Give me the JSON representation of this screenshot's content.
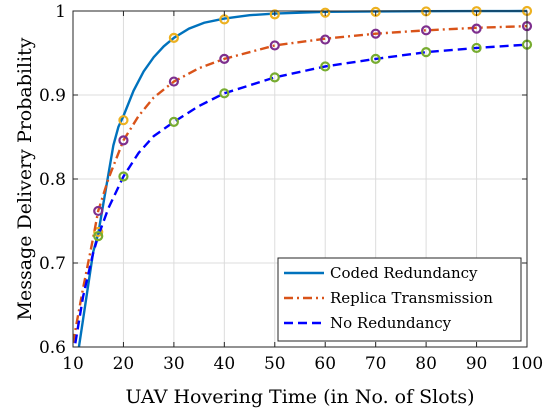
{
  "chart_data": {
    "type": "line",
    "xlabel": "UAV Hovering Time (in No. of Slots)",
    "ylabel": "Message Delivery Probability",
    "xlim": [
      10,
      100
    ],
    "ylim": [
      0.6,
      1
    ],
    "xticks": [
      10,
      20,
      30,
      40,
      50,
      60,
      70,
      80,
      90,
      100
    ],
    "yticks": [
      0.6,
      0.7,
      0.8,
      0.9,
      1
    ],
    "ytick_labels": [
      "0.6",
      "0.7",
      "0.8",
      "0.9",
      "1"
    ],
    "grid": true,
    "legend_position": "bottom-right",
    "series": [
      {
        "name": "Coded Redundancy",
        "color": "#0072BD",
        "dash": "solid",
        "marker_color": "#EDB120",
        "curve_x": [
          10,
          11,
          12,
          13,
          14,
          15,
          16,
          17,
          18,
          19,
          20,
          22,
          24,
          26,
          28,
          30,
          33,
          36,
          40,
          45,
          50,
          55,
          60,
          70,
          80,
          90,
          100
        ],
        "curve_y": [
          0.562,
          0.593,
          0.633,
          0.673,
          0.713,
          0.735,
          0.77,
          0.805,
          0.84,
          0.862,
          0.875,
          0.905,
          0.928,
          0.945,
          0.958,
          0.968,
          0.979,
          0.986,
          0.991,
          0.995,
          0.997,
          0.998,
          0.999,
          0.9995,
          0.9998,
          0.9999,
          1.0
        ],
        "marker_x": [
          15,
          20,
          30,
          40,
          50,
          60,
          70,
          80,
          90,
          100
        ],
        "marker_y": [
          0.737,
          0.87,
          0.968,
          0.99,
          0.996,
          0.998,
          0.999,
          0.9995,
          0.9998,
          1.0
        ]
      },
      {
        "name": "Replica Transmission",
        "color": "#D95319",
        "dash": "dashdot",
        "marker_color": "#7E2F8E",
        "curve_x": [
          10,
          12,
          14,
          15,
          17,
          20,
          23,
          26,
          30,
          35,
          40,
          50,
          60,
          70,
          80,
          90,
          100
        ],
        "curve_y": [
          0.605,
          0.67,
          0.73,
          0.762,
          0.8,
          0.846,
          0.875,
          0.897,
          0.916,
          0.932,
          0.943,
          0.959,
          0.967,
          0.973,
          0.977,
          0.98,
          0.982
        ],
        "marker_x": [
          15,
          20,
          30,
          40,
          50,
          60,
          70,
          80,
          90,
          100
        ],
        "marker_y": [
          0.762,
          0.846,
          0.916,
          0.943,
          0.959,
          0.966,
          0.973,
          0.977,
          0.979,
          0.982
        ]
      },
      {
        "name": "No Redundancy",
        "color": "#0000FF",
        "dash": "dashed",
        "marker_color": "#77AC30",
        "curve_x": [
          10,
          12,
          14,
          15,
          17,
          20,
          23,
          26,
          30,
          35,
          40,
          50,
          60,
          70,
          80,
          90,
          100
        ],
        "curve_y": [
          0.588,
          0.66,
          0.712,
          0.732,
          0.765,
          0.803,
          0.831,
          0.851,
          0.868,
          0.887,
          0.902,
          0.921,
          0.934,
          0.943,
          0.951,
          0.956,
          0.96
        ],
        "marker_x": [
          15,
          20,
          30,
          40,
          50,
          60,
          70,
          80,
          90,
          100
        ],
        "marker_y": [
          0.732,
          0.803,
          0.868,
          0.902,
          0.921,
          0.934,
          0.943,
          0.951,
          0.956,
          0.96
        ]
      }
    ]
  }
}
